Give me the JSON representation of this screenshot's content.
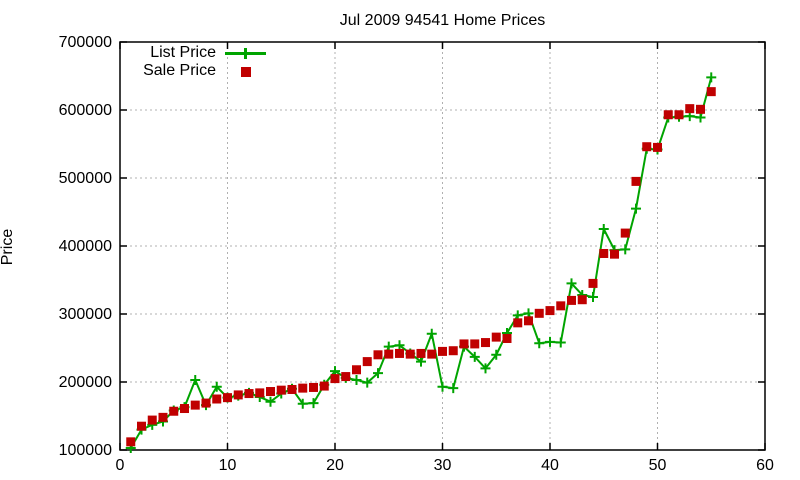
{
  "chart_data": {
    "type": "line",
    "title": "Jul 2009 94541 Home Prices",
    "xlabel": "",
    "ylabel": "Price",
    "xlim": [
      0,
      60
    ],
    "ylim": [
      100000,
      700000
    ],
    "x_ticks": [
      0,
      10,
      20,
      30,
      40,
      50,
      60
    ],
    "x_tick_labels": [
      "0",
      "10",
      "20",
      "30",
      "40",
      "50",
      "60"
    ],
    "y_ticks": [
      100000,
      200000,
      300000,
      400000,
      500000,
      600000,
      700000
    ],
    "y_tick_labels": [
      "100000",
      "200000",
      "300000",
      "400000",
      "500000",
      "600000",
      "700000"
    ],
    "grid": true,
    "legend_position": "top-left-inside",
    "x": [
      1,
      2,
      3,
      4,
      5,
      6,
      7,
      8,
      9,
      10,
      11,
      12,
      13,
      14,
      15,
      16,
      17,
      18,
      19,
      20,
      21,
      22,
      23,
      24,
      25,
      26,
      27,
      28,
      29,
      30,
      31,
      32,
      33,
      34,
      35,
      36,
      37,
      38,
      39,
      40,
      41,
      42,
      43,
      44,
      45,
      46,
      47,
      48,
      49,
      50,
      51,
      52,
      53,
      54,
      55
    ],
    "series": [
      {
        "name": "List Price",
        "color": "#00a400",
        "marker": "plus",
        "line": true,
        "values": [
          103000,
          130000,
          137000,
          142000,
          158000,
          163000,
          203000,
          166000,
          193000,
          177000,
          180000,
          184000,
          178000,
          171000,
          183000,
          190000,
          168000,
          169000,
          196000,
          216000,
          206000,
          203000,
          199000,
          213000,
          252000,
          254000,
          242000,
          230000,
          271000,
          193000,
          191000,
          252000,
          237000,
          220000,
          240000,
          272000,
          298000,
          301000,
          257000,
          259000,
          258000,
          345000,
          328000,
          325000,
          425000,
          394000,
          395000,
          455000,
          543000,
          542000,
          589000,
          590000,
          591000,
          589000,
          648000
        ]
      },
      {
        "name": "Sale Price",
        "color": "#c00000",
        "marker": "square",
        "line": false,
        "values": [
          112000,
          135000,
          144000,
          148000,
          157000,
          161000,
          166000,
          169000,
          175000,
          177000,
          181000,
          183000,
          184000,
          186000,
          188000,
          189000,
          191000,
          192000,
          194000,
          205000,
          208000,
          218000,
          230000,
          240000,
          241000,
          242000,
          241000,
          242000,
          241000,
          245000,
          246000,
          256000,
          256000,
          258000,
          266000,
          264000,
          287000,
          290000,
          301000,
          305000,
          312000,
          320000,
          321000,
          345000,
          389000,
          388000,
          419000,
          495000,
          546000,
          545000,
          593000,
          593000,
          602000,
          601000,
          627000
        ]
      }
    ]
  },
  "colors": {
    "list_price_green": "#00a400",
    "sale_price_red": "#c00000",
    "grid_gray": "#b0b0b0",
    "axis_black": "#000000",
    "background": "#ffffff"
  }
}
